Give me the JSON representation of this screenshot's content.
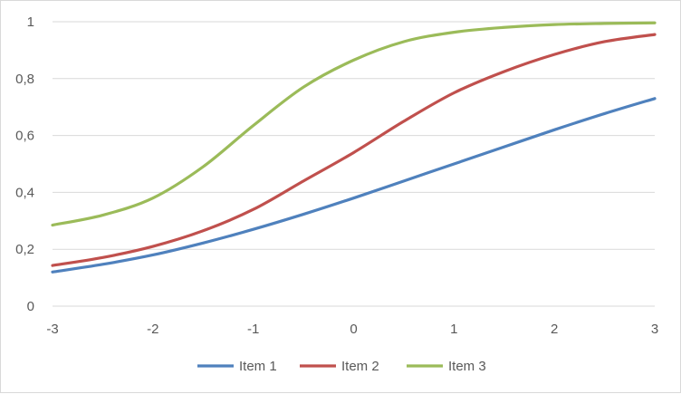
{
  "chart_data": {
    "type": "line",
    "title": "",
    "xlabel": "",
    "ylabel": "",
    "xlim": [
      -3,
      3
    ],
    "ylim": [
      0,
      1
    ],
    "x_ticks": [
      -3,
      -2,
      -1,
      0,
      1,
      2,
      3
    ],
    "x_tick_labels": [
      "-3",
      "-2",
      "-1",
      "0",
      "1",
      "2",
      "3"
    ],
    "y_ticks": [
      0,
      0.2,
      0.4,
      0.6,
      0.8,
      1
    ],
    "y_tick_labels": [
      "0",
      "0,2",
      "0,4",
      "0,6",
      "0,8",
      "1"
    ],
    "grid": true,
    "legend_position": "bottom",
    "x": [
      -3,
      -2.5,
      -2,
      -1.5,
      -1,
      -0.5,
      0,
      0.5,
      1,
      1.5,
      2,
      2.5,
      3
    ],
    "series": [
      {
        "name": "Item 1",
        "color": "#4f81bd",
        "values": [
          0.12,
          0.147,
          0.18,
          0.222,
          0.27,
          0.323,
          0.38,
          0.44,
          0.5,
          0.56,
          0.62,
          0.677,
          0.73
        ]
      },
      {
        "name": "Item 2",
        "color": "#c0504d",
        "values": [
          0.143,
          0.171,
          0.21,
          0.265,
          0.34,
          0.44,
          0.54,
          0.65,
          0.75,
          0.825,
          0.885,
          0.93,
          0.955
        ]
      },
      {
        "name": "Item 3",
        "color": "#9bbb59",
        "values": [
          0.285,
          0.32,
          0.38,
          0.49,
          0.635,
          0.77,
          0.865,
          0.93,
          0.963,
          0.98,
          0.99,
          0.994,
          0.996
        ]
      }
    ]
  }
}
